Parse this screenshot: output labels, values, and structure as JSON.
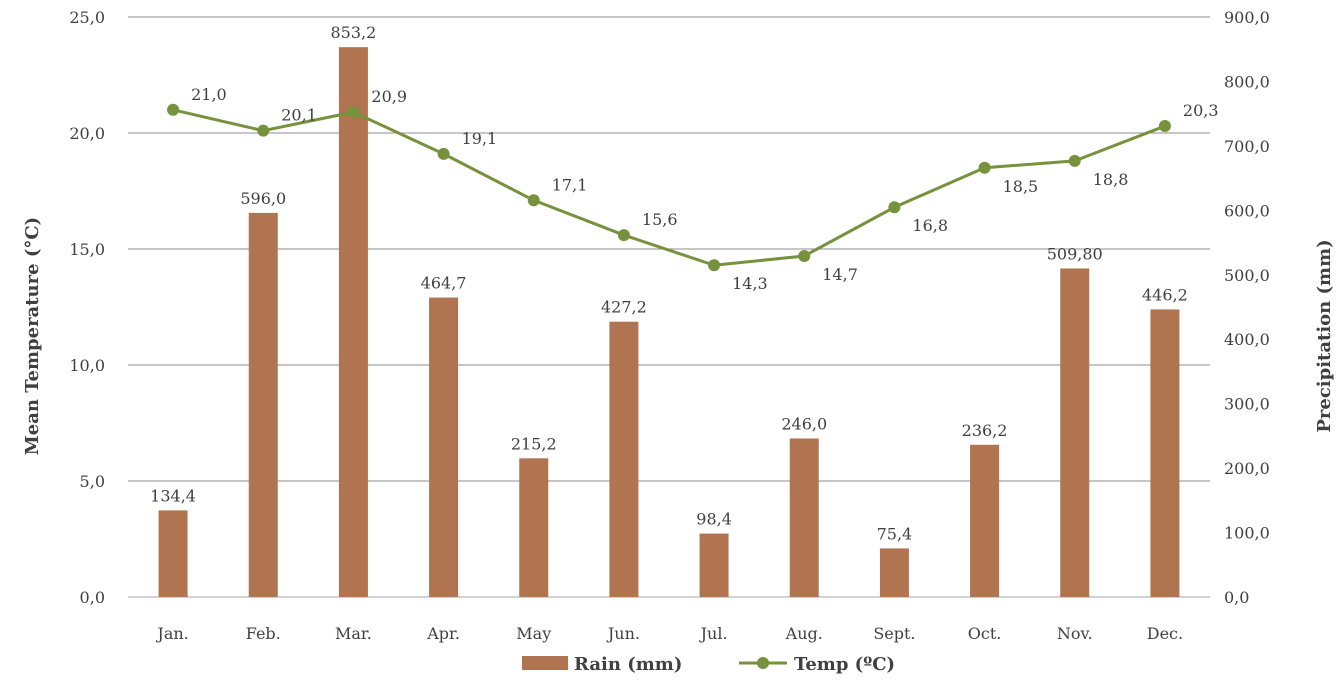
{
  "chart_data": {
    "type": "bar+line",
    "categories": [
      "Jan.",
      "Feb.",
      "Mar.",
      "Apr.",
      "May",
      "Jun.",
      "Jul.",
      "Aug.",
      "Sept.",
      "Oct.",
      "Nov.",
      "Dec."
    ],
    "series": [
      {
        "name": "Rain (mm)",
        "type": "bar",
        "axis": "right",
        "values": [
          134.4,
          596.0,
          853.2,
          464.7,
          215.2,
          427.2,
          98.4,
          246.0,
          75.4,
          236.2,
          509.8,
          446.2
        ],
        "labels": [
          "134,4",
          "596,0",
          "853,2",
          "464,7",
          "215,2",
          "427,2",
          "98,4",
          "246,0",
          "75,4",
          "236,2",
          "509,80",
          "446,2"
        ],
        "color": "#b07550"
      },
      {
        "name": "Temp (ºC)",
        "type": "line",
        "axis": "left",
        "values": [
          21.0,
          20.1,
          20.9,
          19.1,
          17.1,
          15.6,
          14.3,
          14.7,
          16.8,
          18.5,
          18.8,
          20.3
        ],
        "labels": [
          "21,0",
          "20,1",
          "20,9",
          "19,1",
          "17,1",
          "15,6",
          "14,3",
          "14,7",
          "16,8",
          "18,5",
          "18,8",
          "20,3"
        ],
        "color": "#77923c"
      }
    ],
    "ylabel_left": "Mean Temperature (°C)",
    "ylabel_right": "Precipitation (mm)",
    "ylim_left": [
      0,
      25
    ],
    "ylim_right": [
      0,
      900
    ],
    "yticks_left": [
      "0,0",
      "5,0",
      "10,0",
      "15,0",
      "20,0",
      "25,0"
    ],
    "yticks_right": [
      "0,0",
      "100,0",
      "200,0",
      "300,0",
      "400,0",
      "500,0",
      "600,0",
      "700,0",
      "800,0",
      "900,0"
    ],
    "grid": true,
    "legend_position": "bottom"
  }
}
